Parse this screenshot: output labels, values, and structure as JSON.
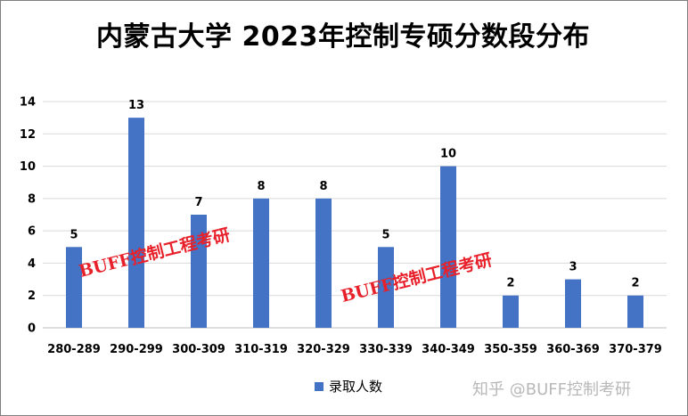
{
  "chart_data": {
    "type": "bar",
    "title": "内蒙古大学 2023年控制专硕分数段分布",
    "categories": [
      "280-289",
      "290-299",
      "300-309",
      "310-319",
      "320-329",
      "330-339",
      "340-349",
      "350-359",
      "360-369",
      "370-379"
    ],
    "series": [
      {
        "name": "录取人数",
        "values": [
          5,
          13,
          7,
          8,
          8,
          5,
          10,
          2,
          3,
          2
        ]
      }
    ],
    "ylim": [
      0,
      14
    ],
    "yticks": [
      0,
      2,
      4,
      6,
      8,
      10,
      12,
      14
    ],
    "grid": true,
    "legend_position": "bottom",
    "data_labels": true
  },
  "colors": {
    "bar": "#4472c4",
    "grid": "#d9d9d9",
    "watermark": "#e8202a"
  },
  "watermarks": [
    "BUFF控制工程考研",
    "BUFF控制工程考研"
  ],
  "credit": "知乎 @BUFF控制考研"
}
